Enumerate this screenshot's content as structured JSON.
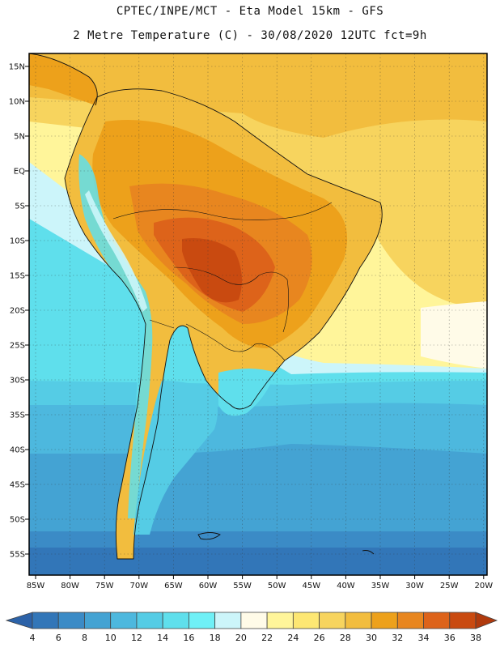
{
  "header": {
    "line1": "CPTEC/INPE/MCT -  Eta Model 15km - GFS",
    "line2": "2 Metre Temperature (C) - 30/08/2020 12UTC fct=9h"
  },
  "map": {
    "lat_labels": [
      "15N",
      "10N",
      "5N",
      "EQ",
      "5S",
      "10S",
      "15S",
      "20S",
      "25S",
      "30S",
      "35S",
      "40S",
      "45S",
      "50S",
      "55S"
    ],
    "lon_labels": [
      "85W",
      "80W",
      "75W",
      "70W",
      "65W",
      "60W",
      "55W",
      "50W",
      "45W",
      "40W",
      "35W",
      "30W",
      "25W",
      "20W"
    ]
  },
  "colorbar": {
    "values": [
      "4",
      "6",
      "8",
      "10",
      "12",
      "14",
      "16",
      "18",
      "20",
      "22",
      "24",
      "26",
      "28",
      "30",
      "32",
      "34",
      "36",
      "38"
    ],
    "colors": [
      "#2c62a8",
      "#3276b8",
      "#3b8bc6",
      "#44a3d3",
      "#4db8de",
      "#55cce5",
      "#5fdfec",
      "#6ff0f6",
      "#ccf5fa",
      "#fffbe8",
      "#fff59a",
      "#fde773",
      "#f7d45e",
      "#f2bd3e",
      "#eda11b",
      "#e8861f",
      "#dd631a",
      "#c94a10",
      "#b03a0d"
    ]
  }
}
